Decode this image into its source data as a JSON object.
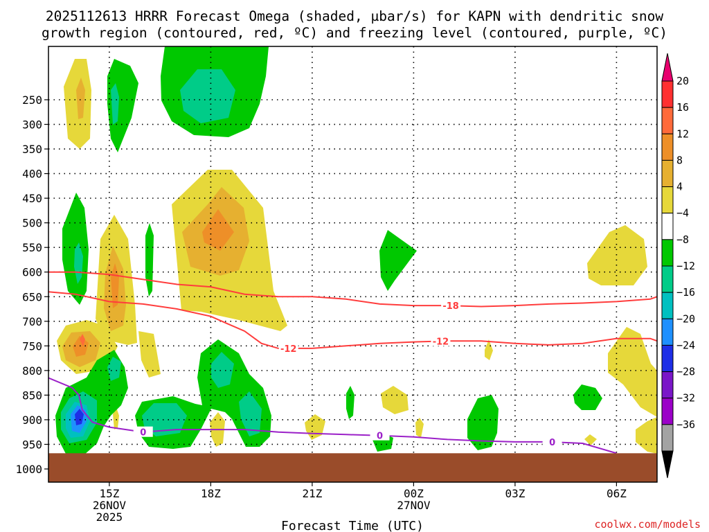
{
  "chart_data": {
    "type": "heatmap",
    "title_line1": "2025112613 HRRR Forecast Omega (shaded, µbar/s) for KAPN with dendritic snow",
    "title_line2": "growth region (contoured, red, ºC) and freezing level (contoured, purple, ºC)",
    "xlabel": "Forecast Time (UTC)",
    "ylabel": "",
    "credit": "coolwx.com/models",
    "x_range_hours": [
      13.2,
      31.2
    ],
    "x_ticks": [
      {
        "hour": 15,
        "lines": [
          "15Z",
          "26NOV",
          "2025"
        ]
      },
      {
        "hour": 18,
        "lines": [
          "18Z"
        ]
      },
      {
        "hour": 21,
        "lines": [
          "21Z"
        ]
      },
      {
        "hour": 24,
        "lines": [
          "00Z",
          "27NOV"
        ]
      },
      {
        "hour": 27,
        "lines": [
          "03Z"
        ]
      },
      {
        "hour": 30,
        "lines": [
          "06Z"
        ]
      }
    ],
    "y_ticks": [
      250,
      300,
      350,
      400,
      450,
      500,
      550,
      600,
      650,
      700,
      750,
      800,
      850,
      900,
      950,
      1000
    ],
    "grid": true,
    "colorbar": {
      "levels": [
        "20",
        "16",
        "12",
        "8",
        "4",
        "−4",
        "−8",
        "−12",
        "−16",
        "−20",
        "−24",
        "−28",
        "−32",
        "−36"
      ],
      "colors": [
        "#e8006e",
        "#ff3030",
        "#ff6a3a",
        "#ee8f28",
        "#e6b030",
        "#e6d83a",
        "#ffffff",
        "#00c800",
        "#00cc88",
        "#00c0c0",
        "#1e90ff",
        "#1e2ee6",
        "#7a16c8",
        "#9b00c8",
        "#a3a3a3",
        "#000000"
      ]
    },
    "omega_areas": [
      {
        "level": "4",
        "color": "#e6d83a"
      },
      {
        "level": "8",
        "color": "#e6b030"
      },
      {
        "level": "12",
        "color": "#ee8f28"
      },
      {
        "level": "16",
        "color": "#ff6a3a"
      },
      {
        "level": "-4",
        "color": "#00c800"
      },
      {
        "level": "-8",
        "color": "#00cc88"
      },
      {
        "level": "-12",
        "color": "#00c0c0"
      },
      {
        "level": "-16",
        "color": "#1e90ff"
      },
      {
        "level": "-20",
        "color": "#1e2ee6"
      }
    ],
    "dgz_contours": [
      {
        "label": "-18",
        "color": "#ff3c3c",
        "points": [
          [
            13.2,
            600
          ],
          [
            14,
            600
          ],
          [
            15,
            605
          ],
          [
            16,
            615
          ],
          [
            17,
            625
          ],
          [
            18,
            630
          ],
          [
            19,
            645
          ],
          [
            20,
            650
          ],
          [
            21,
            650
          ],
          [
            22,
            655
          ],
          [
            23,
            665
          ],
          [
            24,
            668
          ],
          [
            25,
            668
          ],
          [
            26,
            670
          ],
          [
            27,
            668
          ],
          [
            28,
            665
          ],
          [
            29,
            663
          ],
          [
            30,
            660
          ],
          [
            31,
            655
          ],
          [
            31.2,
            650
          ]
        ]
      },
      {
        "label": "-12",
        "color": "#ff3c3c",
        "points": [
          [
            13.2,
            640
          ],
          [
            14,
            645
          ],
          [
            15,
            660
          ],
          [
            16,
            665
          ],
          [
            17,
            675
          ],
          [
            18,
            690
          ],
          [
            18.5,
            705
          ],
          [
            19,
            720
          ],
          [
            19.5,
            745
          ],
          [
            20,
            755
          ],
          [
            21,
            755
          ],
          [
            22,
            750
          ],
          [
            23,
            745
          ],
          [
            24,
            742
          ],
          [
            25,
            740
          ],
          [
            26,
            740
          ],
          [
            27,
            745
          ],
          [
            28,
            748
          ],
          [
            29,
            745
          ],
          [
            30,
            735
          ],
          [
            31,
            735
          ],
          [
            31.2,
            740
          ]
        ]
      }
    ],
    "freezing_contour": {
      "label": "0",
      "color": "#9b20c8",
      "points": [
        [
          13.2,
          815
        ],
        [
          13.9,
          835
        ],
        [
          14.1,
          850
        ],
        [
          14.2,
          880
        ],
        [
          14.5,
          905
        ],
        [
          15,
          915
        ],
        [
          16,
          925
        ],
        [
          17,
          920
        ],
        [
          18,
          920
        ],
        [
          19,
          920
        ],
        [
          20,
          925
        ],
        [
          21,
          928
        ],
        [
          22,
          930
        ],
        [
          23,
          932
        ],
        [
          24,
          935
        ],
        [
          25,
          940
        ],
        [
          26,
          943
        ],
        [
          27,
          945
        ],
        [
          28,
          945
        ],
        [
          29,
          948
        ],
        [
          30,
          968
        ]
      ]
    },
    "contour_labels": [
      "-18",
      "-12",
      "0"
    ],
    "terrain": {
      "top_pressure": 968,
      "color": "#9a4c2a"
    }
  }
}
